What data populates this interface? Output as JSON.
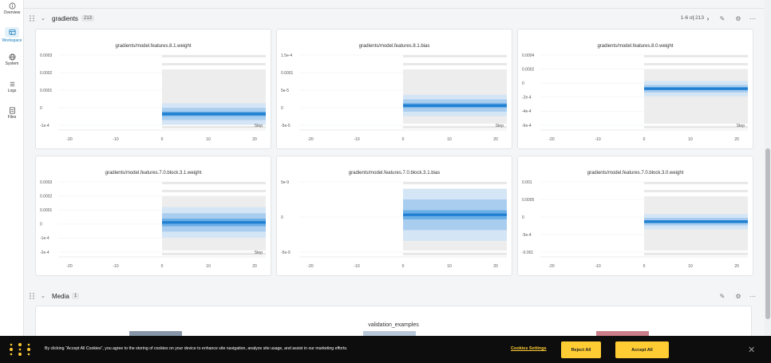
{
  "nav": {
    "items": [
      {
        "label": "Overview",
        "icon": "info-icon"
      },
      {
        "label": "Workspace",
        "icon": "workspace-icon",
        "active": true
      },
      {
        "label": "System",
        "icon": "globe-icon"
      },
      {
        "label": "Logs",
        "icon": "list-icon"
      },
      {
        "label": "Files",
        "icon": "file-icon"
      }
    ]
  },
  "gradients_section": {
    "title": "gradients",
    "count": "213",
    "pager": "1-6 of 213",
    "icons": [
      "prev-page-icon",
      "next-page-icon",
      "edit-icon",
      "settings-icon",
      "more-icon"
    ]
  },
  "media_section": {
    "title": "Media",
    "count": "1",
    "panel_title": "validation_examples"
  },
  "panels": [
    {
      "title": "gradients/model.features.8.1.weight",
      "yticks": [
        "0.0003",
        "0.0002",
        "0.0001",
        "0",
        "-1e-4"
      ],
      "xticks": [
        "-20",
        "-10",
        "0",
        "10",
        "20"
      ],
      "step_label": "Step"
    },
    {
      "title": "gradients/model.features.8.1.bias",
      "yticks": [
        "1.5e-4",
        "0.0001",
        "5e-5",
        "0",
        "-5e-5"
      ],
      "xticks": [
        "-20",
        "-10",
        "0",
        "10",
        "20"
      ],
      "step_label": "Step"
    },
    {
      "title": "gradients/model.features.8.0.weight",
      "yticks": [
        "0.0004",
        "0.0002",
        "0",
        "-2e-4",
        "-4e-4",
        "-6e-4"
      ],
      "xticks": [
        "-20",
        "-10",
        "0",
        "10",
        "20"
      ],
      "step_label": "Step"
    },
    {
      "title": "gradients/model.features.7.0.block.3.1.weight",
      "yticks": [
        "0.0003",
        "0.0002",
        "0.0001",
        "0",
        "-1e-4",
        "-2e-4"
      ],
      "xticks": [
        "-20",
        "-10",
        "0",
        "10",
        "20"
      ],
      "step_label": "Step"
    },
    {
      "title": "gradients/model.features.7.0.block.3.1.bias",
      "yticks": [
        "5e-9",
        "0",
        "-5e-9"
      ],
      "xticks": [
        "-20",
        "-10",
        "0",
        "10",
        "20"
      ],
      "step_label": ""
    },
    {
      "title": "gradients/model.features.7.0.block.3.0.weight",
      "yticks": [
        "0.001",
        "0.0005",
        "0",
        "-5e-4",
        "-0.001"
      ],
      "xticks": [
        "-20",
        "-10",
        "0",
        "10",
        "20"
      ],
      "step_label": ""
    }
  ],
  "cookie": {
    "text": "By clicking “Accept All Cookies”, you agree to the storing of cookies on your device to enhance site navigation, analyze site usage, and assist in our marketing efforts.",
    "settings_label": "Cookies Settings",
    "reject_label": "Reject All",
    "accept_label": "Accept All",
    "close_icon": "close-icon"
  },
  "colors": {
    "accent": "#1379b8",
    "heatmap_dark": "#1f7fd1",
    "cookie_button": "#ffcc33",
    "cookie_bg": "#0d0d0d"
  }
}
